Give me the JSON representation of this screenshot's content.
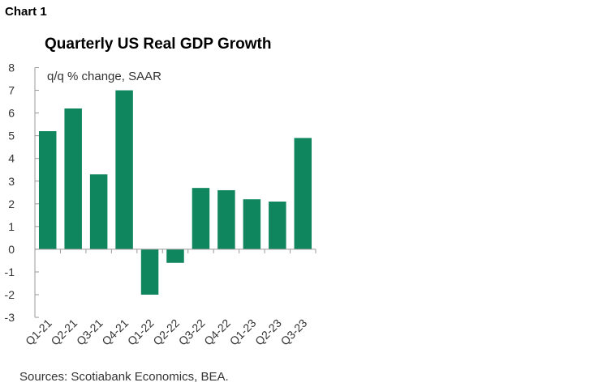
{
  "chart_label": "Chart 1",
  "chart_data": {
    "type": "bar",
    "title": "Quarterly US Real GDP Growth",
    "subtitle": "q/q % change, SAAR",
    "source": "Sources: Scotiabank Economics, BEA.",
    "categories": [
      "Q1-21",
      "Q2-21",
      "Q3-21",
      "Q4-21",
      "Q1-22",
      "Q2-22",
      "Q3-22",
      "Q4-22",
      "Q1-23",
      "Q2-23",
      "Q3-23"
    ],
    "values": [
      5.2,
      6.2,
      3.3,
      7.0,
      -2.0,
      -0.6,
      2.7,
      2.6,
      2.2,
      2.1,
      4.9
    ],
    "ylim": [
      -3,
      8
    ],
    "yticks": [
      8,
      7,
      6,
      5,
      4,
      3,
      2,
      1,
      0,
      -1,
      -2,
      -3
    ],
    "grid": false,
    "bar_color": "#10865e"
  }
}
